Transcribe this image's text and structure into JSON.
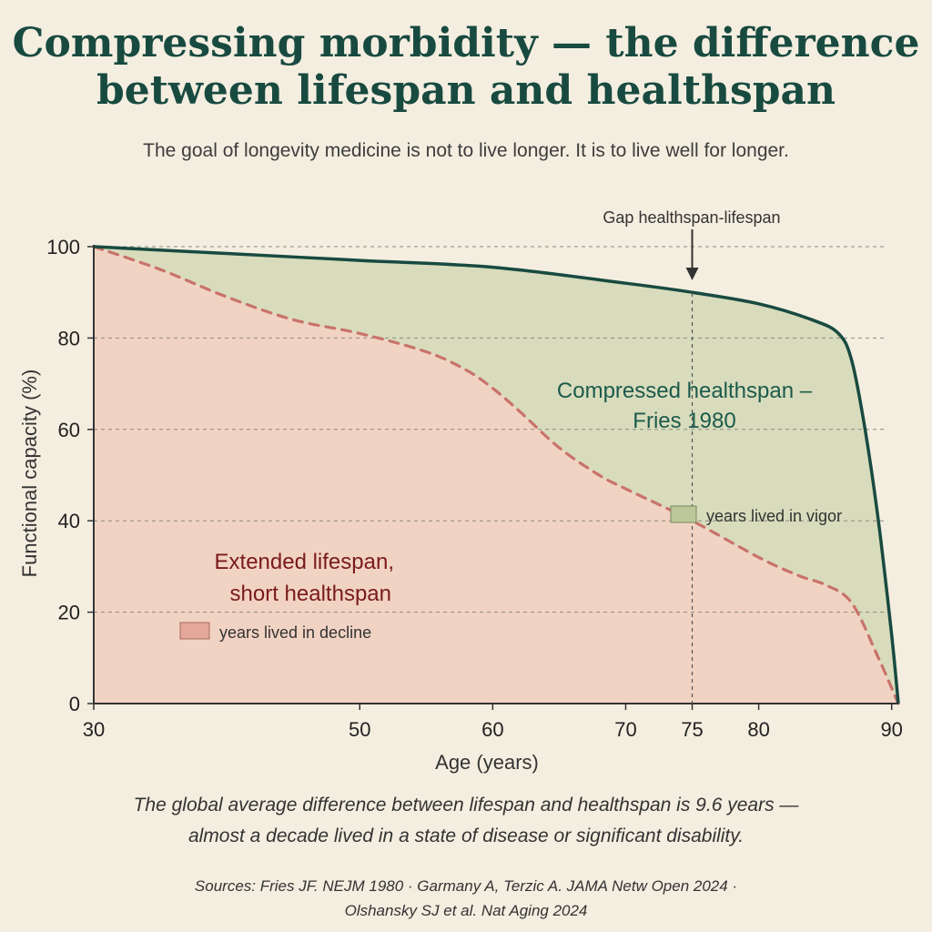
{
  "title_lines": [
    "Compressing morbidity — the difference",
    "between lifespan and healthspan"
  ],
  "subtitle": "The goal of longevity medicine is not to live longer. It is to live well for longer.",
  "chart_data": {
    "type": "area",
    "xlabel": "Age (years)",
    "ylabel": "Functional capacity (%)",
    "xlim": [
      30,
      90.5
    ],
    "ylim": [
      0,
      100
    ],
    "x_ticks": [
      30,
      50,
      60,
      70,
      75,
      80,
      90
    ],
    "y_ticks": [
      0,
      20,
      40,
      60,
      80,
      100
    ],
    "grid": "horizontal dashed",
    "series": [
      {
        "name": "Compressed healthspan — Fries 1980",
        "line": "solid",
        "color": "#184a40",
        "fill": "#d8dcbc",
        "x": [
          30,
          40,
          50,
          60,
          70,
          75,
          80,
          84,
          86,
          87,
          88,
          89,
          90,
          90.5
        ],
        "y": [
          100,
          98.5,
          97,
          95.5,
          92,
          90,
          87.5,
          84,
          81,
          75,
          60,
          40,
          15,
          0
        ]
      },
      {
        "name": "Extended lifespan, short healthspan",
        "line": "dashed",
        "color": "#c8736a",
        "fill": "#f1d3c3",
        "x": [
          30,
          35,
          40,
          45,
          50,
          55,
          58,
          60,
          62,
          65,
          68,
          70,
          75,
          80,
          83,
          85,
          87,
          89,
          90.5
        ],
        "y": [
          100,
          95,
          89,
          84,
          81,
          77,
          73,
          69,
          64,
          56,
          50,
          47,
          40,
          32,
          28,
          26,
          22,
          10,
          0
        ]
      }
    ],
    "annotations": {
      "gap_label": "Gap healthspan-lifespan",
      "gap_x": 75,
      "region_green": [
        "Compressed healthspan –",
        "Fries 1980"
      ],
      "region_red": [
        "Extended lifespan,",
        "short healthspan"
      ],
      "legend_vigor": "years lived in vigor",
      "legend_decline": "years lived in decline"
    }
  },
  "note_lines": [
    "The global average difference between lifespan and healthspan is 9.6 years —",
    "almost a decade lived in a state of disease or significant disability."
  ],
  "sources_lines": [
    "Sources:  Fries JF. NEJM 1980 · Garmany A, Terzic A. JAMA Netw Open 2024 ·",
    "Olshansky SJ et al. Nat Aging 2024"
  ]
}
